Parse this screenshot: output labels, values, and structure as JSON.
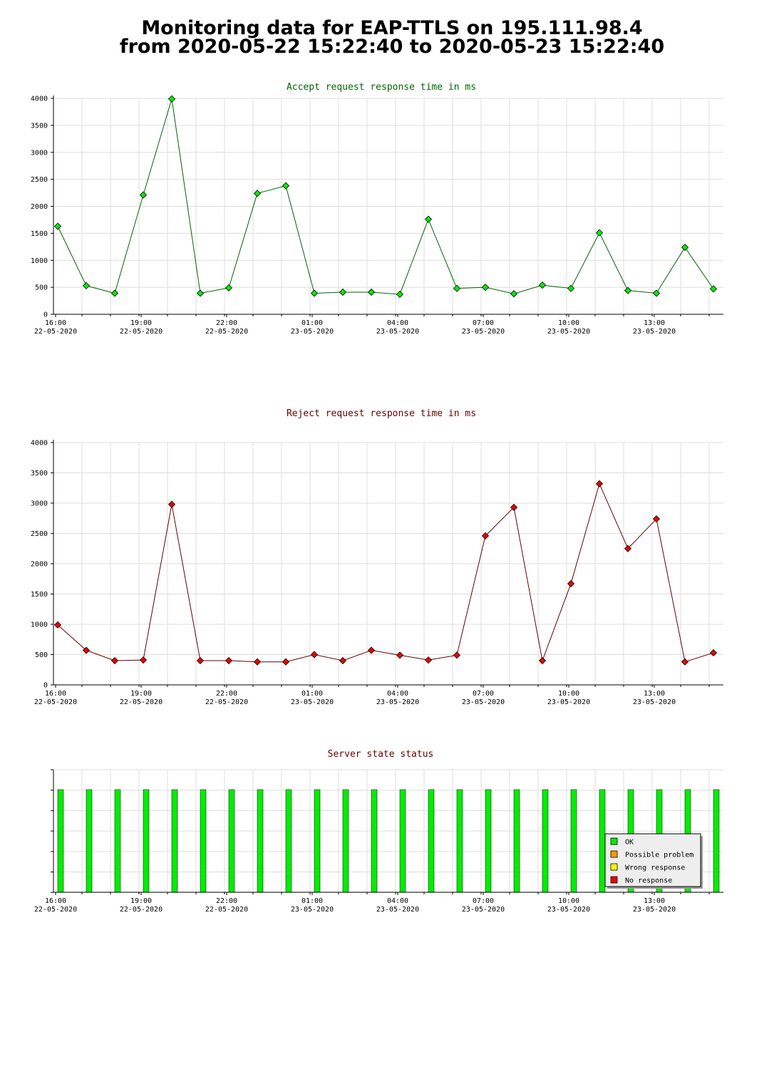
{
  "header": {
    "title_line1": "Monitoring data for EAP-TTLS on 195.111.98.4",
    "title_line2": "from 2020-05-22 15:22:40 to 2020-05-23 15:22:40"
  },
  "x_ticks": [
    {
      "time": "16:00",
      "date": "22-05-2020",
      "index": 0
    },
    {
      "time": "19:00",
      "date": "22-05-2020",
      "index": 3
    },
    {
      "time": "22:00",
      "date": "22-05-2020",
      "index": 6
    },
    {
      "time": "01:00",
      "date": "23-05-2020",
      "index": 9
    },
    {
      "time": "04:00",
      "date": "23-05-2020",
      "index": 12
    },
    {
      "time": "07:00",
      "date": "23-05-2020",
      "index": 15
    },
    {
      "time": "10:00",
      "date": "23-05-2020",
      "index": 18
    },
    {
      "time": "13:00",
      "date": "23-05-2020",
      "index": 21
    }
  ],
  "chart_data": [
    {
      "type": "line",
      "title": "Accept request response time in ms",
      "title_color": "#006600",
      "line_color": "#006600",
      "marker_color": "#00ee00",
      "ylim": [
        0,
        4000
      ],
      "yticks": [
        "0",
        "500",
        "1000",
        "1500",
        "2000",
        "2500",
        "3000",
        "3500",
        "4000"
      ],
      "x": [
        "15:50",
        "16:50",
        "17:50",
        "18:50",
        "19:50",
        "20:50",
        "21:50",
        "22:50",
        "23:50",
        "00:50",
        "01:50",
        "02:50",
        "03:50",
        "04:50",
        "05:50",
        "06:50",
        "07:50",
        "08:50",
        "09:50",
        "10:50",
        "11:50",
        "12:50",
        "13:50",
        "14:50"
      ],
      "values": [
        1630,
        530,
        390,
        2210,
        3990,
        390,
        490,
        2240,
        2380,
        390,
        410,
        410,
        370,
        1760,
        480,
        500,
        380,
        540,
        480,
        1510,
        440,
        390,
        1240,
        470
      ]
    },
    {
      "type": "line",
      "title": "Reject request response time in ms",
      "title_color": "#660000",
      "line_color": "#660000",
      "marker_color": "#ee0000",
      "ylim": [
        0,
        4000
      ],
      "yticks": [
        "0",
        "500",
        "1000",
        "1500",
        "2000",
        "2500",
        "3000",
        "3500",
        "4000"
      ],
      "x": [
        "15:50",
        "16:50",
        "17:50",
        "18:50",
        "19:50",
        "20:50",
        "21:50",
        "22:50",
        "23:50",
        "00:50",
        "01:50",
        "02:50",
        "03:50",
        "04:50",
        "05:50",
        "06:50",
        "07:50",
        "08:50",
        "09:50",
        "10:50",
        "11:50",
        "12:50",
        "13:50",
        "14:50"
      ],
      "values": [
        990,
        570,
        400,
        410,
        2980,
        400,
        400,
        380,
        380,
        500,
        400,
        570,
        490,
        410,
        490,
        2460,
        2930,
        400,
        1670,
        3320,
        2250,
        2740,
        380,
        530
      ]
    },
    {
      "type": "bar",
      "title": "Server state status",
      "title_color": "#660000",
      "statuses": [
        "OK",
        "OK",
        "OK",
        "OK",
        "OK",
        "OK",
        "OK",
        "OK",
        "OK",
        "OK",
        "OK",
        "OK",
        "OK",
        "OK",
        "OK",
        "OK",
        "OK",
        "OK",
        "OK",
        "OK",
        "OK",
        "OK",
        "OK",
        "OK"
      ],
      "legend": {
        "position": "bottom-right",
        "items": [
          {
            "label": "OK",
            "color": "#00ee00"
          },
          {
            "label": "Possible problem",
            "color": "#ff9900"
          },
          {
            "label": "Wrong response",
            "color": "#ffff00"
          },
          {
            "label": "No response",
            "color": "#ee0000"
          }
        ]
      }
    }
  ]
}
